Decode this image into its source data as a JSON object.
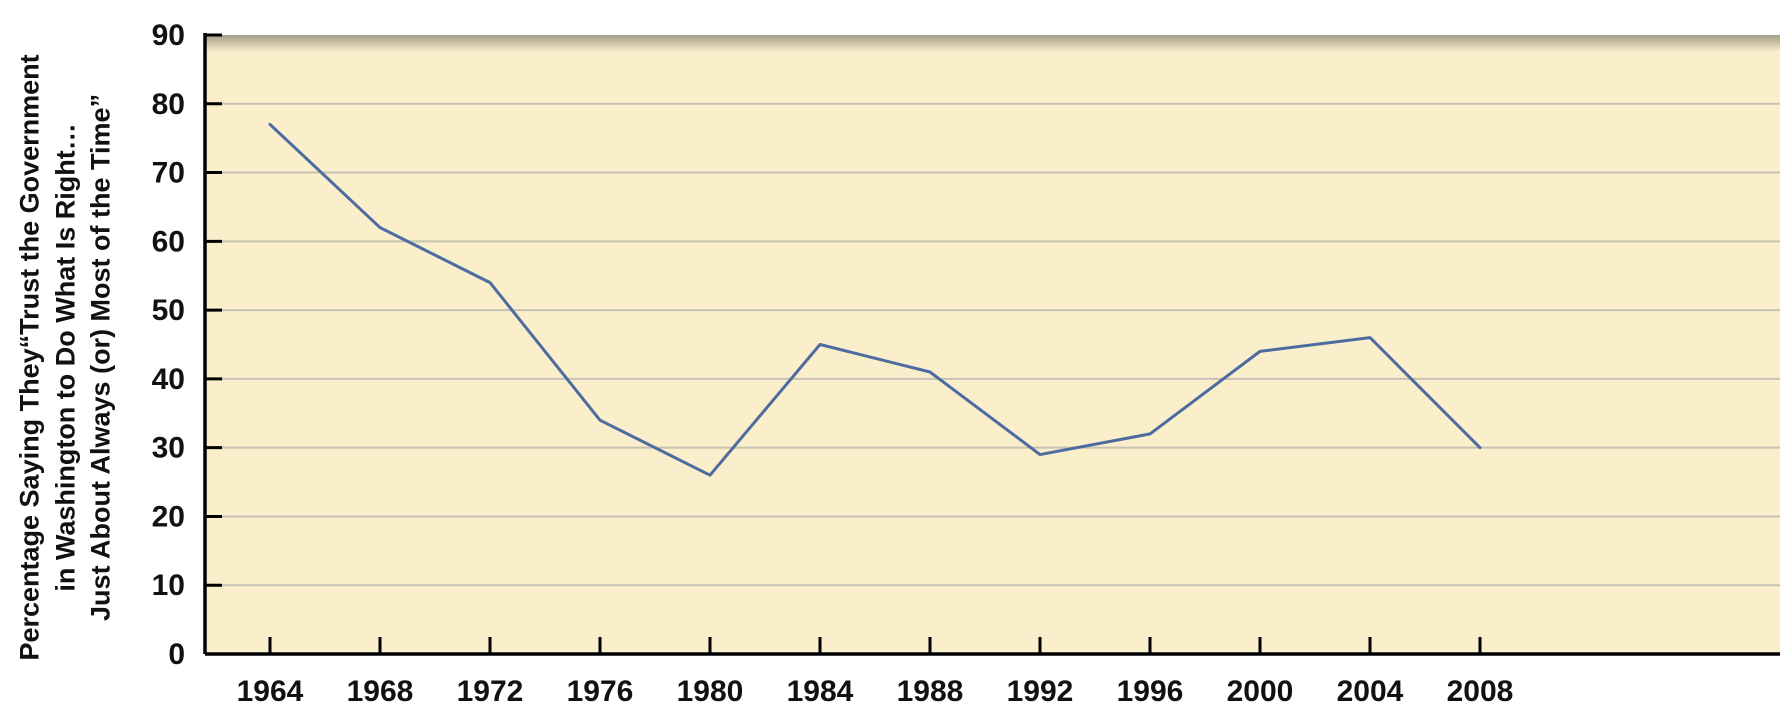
{
  "chart_data": {
    "type": "line",
    "title": "",
    "xlabel": "",
    "ylabel": "Percentage Saying They “Trust the Government in Washington to Do What Is Right… Just About Always (or) Most of the Time”",
    "ylabel_lines": [
      "Percentage Saying They“Trust the Government",
      "in Washington to Do What Is Right…",
      "Just About Always (or) Most of the Time”"
    ],
    "x": [
      1964,
      1968,
      1972,
      1976,
      1980,
      1984,
      1988,
      1992,
      1996,
      2000,
      2004,
      2008
    ],
    "values": [
      77,
      62,
      54,
      34,
      26,
      45,
      41,
      29,
      32,
      44,
      46,
      30
    ],
    "ylim": [
      0,
      90
    ],
    "ytick_interval": 10,
    "ytick_labels": [
      "0",
      "10",
      "20",
      "30",
      "40",
      "50",
      "60",
      "70",
      "80",
      "90"
    ],
    "xtick_labels": [
      "1964",
      "1968",
      "1972",
      "1976",
      "1980",
      "1984",
      "1988",
      "1992",
      "1996",
      "2000",
      "2004",
      "2008"
    ],
    "grid": true,
    "legend_position": "none",
    "colors": {
      "plot_background": "#FBEECB",
      "line": "#4C6CA0",
      "gridline": "#C6C3B4",
      "axis": "#000000",
      "text": "#111111"
    }
  }
}
